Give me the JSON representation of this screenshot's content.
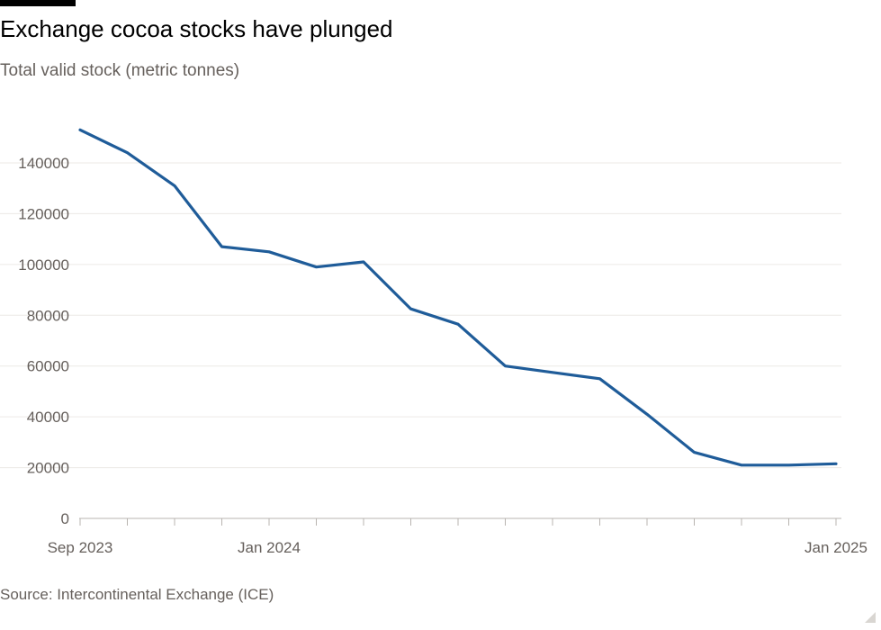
{
  "title": "Exchange cocoa stocks have plunged",
  "subtitle": "Total valid stock (metric tonnes)",
  "source": "Source: Intercontinental Exchange (ICE)",
  "colors": {
    "line": "#1f5c99",
    "grid": "#ece9e6",
    "axis": "#b8b4b0",
    "text": "#66605c"
  },
  "chart_data": {
    "type": "line",
    "title": "Exchange cocoa stocks have plunged",
    "subtitle": "Total valid stock (metric tonnes)",
    "xlabel": "",
    "ylabel": "Total valid stock (metric tonnes)",
    "x": [
      "Sep 2023",
      "Oct 2023",
      "Nov 2023",
      "Dec 2023",
      "Jan 2024",
      "Feb 2024",
      "Mar 2024",
      "Apr 2024",
      "May 2024",
      "Jun 2024",
      "Jul 2024",
      "Aug 2024",
      "Sep 2024",
      "Oct 2024",
      "Nov 2024",
      "Dec 2024",
      "Jan 2025"
    ],
    "series": [
      {
        "name": "Total valid stock",
        "values": [
          153000,
          144000,
          131000,
          107000,
          105000,
          99000,
          101000,
          82500,
          76500,
          60000,
          57500,
          55000,
          41000,
          26000,
          21000,
          21000,
          21500
        ]
      }
    ],
    "ylim": [
      0,
      155000
    ],
    "yticks": [
      0,
      20000,
      40000,
      60000,
      80000,
      100000,
      120000,
      140000
    ],
    "ytick_labels": [
      "0",
      "20000",
      "40000",
      "60000",
      "80000",
      "100000",
      "120000",
      "140000"
    ],
    "xtick_labels": [
      {
        "index": 0,
        "label": "Sep 2023"
      },
      {
        "index": 4,
        "label": "Jan 2024"
      },
      {
        "index": 16,
        "label": "Jan 2025"
      }
    ],
    "grid": true,
    "legend": "none"
  }
}
